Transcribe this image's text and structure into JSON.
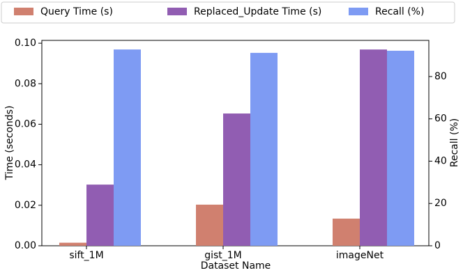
{
  "chart_data": {
    "type": "bar",
    "xlabel": "Dataset Name",
    "ylabel": "Time (seconds)",
    "y2label": "Recall (%)",
    "categories": [
      "sift_1M",
      "gist_1M",
      "imageNet"
    ],
    "series": [
      {
        "name": "Query Time (s)",
        "color": "#d0806f",
        "values": [
          0.0015,
          0.0203,
          0.0134
        ]
      },
      {
        "name": "Replaced_Update Time (s)",
        "color": "#915db2",
        "values": [
          0.0302,
          0.0653,
          0.0969
        ]
      },
      {
        "name": "Recall (%)",
        "color": "#7e9bf3",
        "axis": "y2",
        "values": [
          92.8,
          91.2,
          92.2
        ]
      }
    ],
    "ylim": [
      0,
      0.1014
    ],
    "yticks": [
      {
        "value": 0,
        "label": "0.00"
      },
      {
        "value": 0.02,
        "label": "0.02"
      },
      {
        "value": 0.04,
        "label": "0.04"
      },
      {
        "value": 0.06,
        "label": "0.06"
      },
      {
        "value": 0.08,
        "label": "0.08"
      },
      {
        "value": 0.1,
        "label": "0.10"
      }
    ],
    "y2lim": [
      0,
      97.1
    ],
    "y2ticks": [
      0,
      20,
      40,
      60,
      80
    ],
    "legend": "top"
  }
}
